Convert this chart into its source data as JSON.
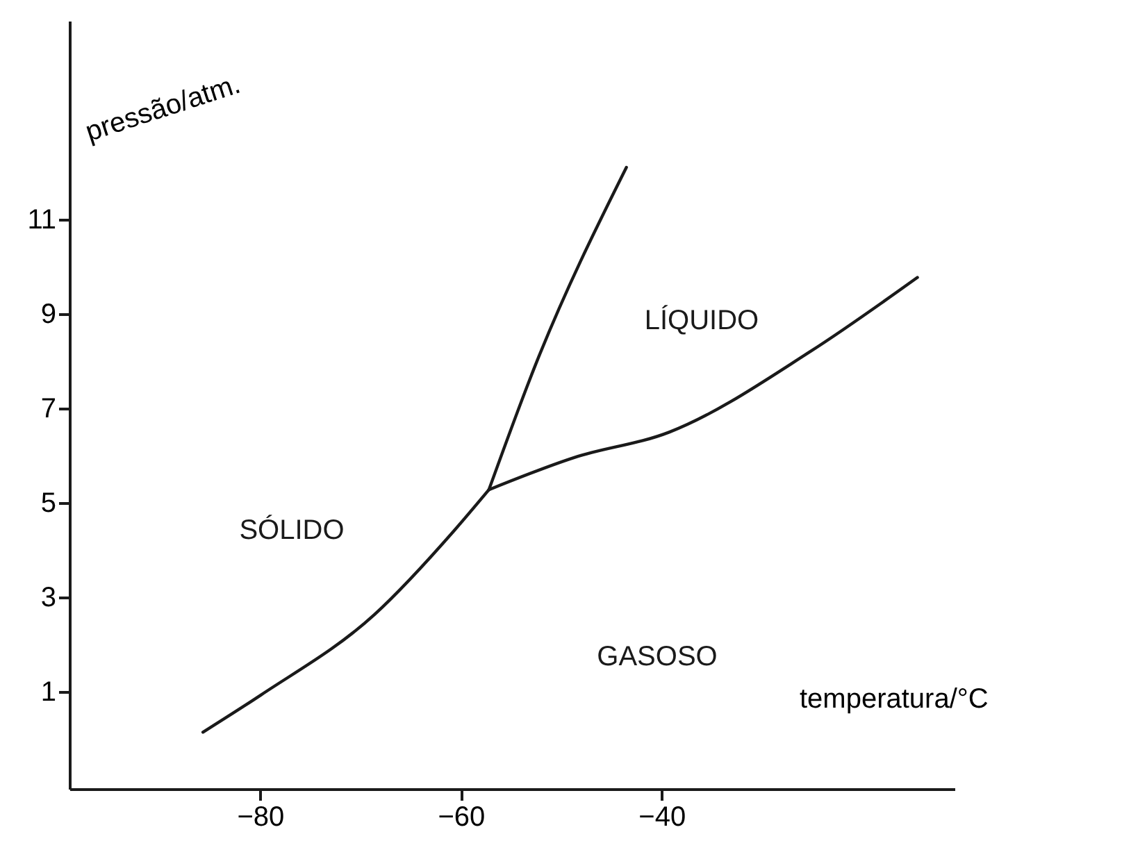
{
  "chart_data": {
    "type": "line",
    "xlabel": "temperatura/°C",
    "ylabel": "pressão/atm.",
    "xlim": [
      -99,
      -10.8
    ],
    "ylim": [
      -1.05,
      15.2
    ],
    "xticks": [
      -80,
      -60,
      -40
    ],
    "yticks": [
      1,
      3,
      5,
      7,
      9,
      11
    ],
    "grid": false,
    "series": [
      {
        "color": "#1a1a1a",
        "x": [
          -85.7,
          -79.9,
          -68.6,
          -60.6,
          -57.2
        ],
        "values": [
          0.15,
          0.94,
          2.64,
          4.43,
          5.28
        ]
      },
      {
        "color": "#1a1a1a",
        "x": [
          -57.2,
          -52.6,
          -43.5
        ],
        "values": [
          5.28,
          7.9,
          12.1
        ]
      },
      {
        "color": "#1a1a1a",
        "x": [
          -57.2,
          -48.7,
          -39.2,
          -25.2,
          -14.5
        ],
        "values": [
          5.28,
          5.96,
          6.5,
          8.2,
          9.77
        ]
      }
    ],
    "annotations": [
      "SÓLIDO",
      "LÍQUIDO",
      "GASOSO"
    ]
  }
}
